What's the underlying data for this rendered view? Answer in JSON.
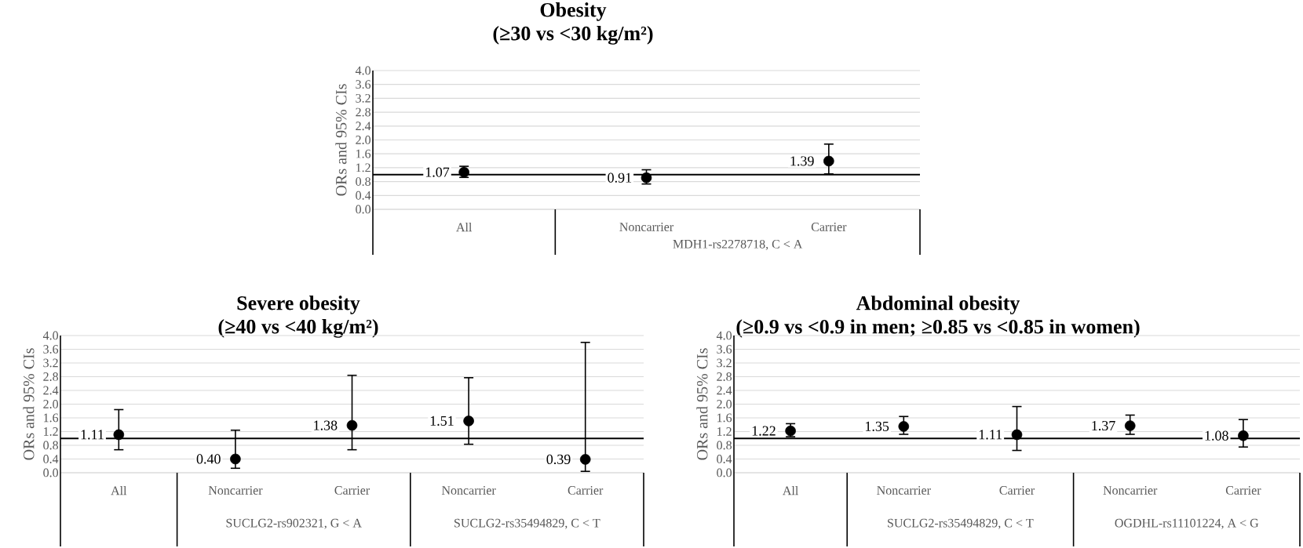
{
  "chart_data": [
    {
      "type": "scatter",
      "title": "Obesity",
      "subtitle": "(≥30 vs <30 kg/m²)",
      "ylabel": "ORs and 95% CIs",
      "categories": [
        "All",
        "Noncarrier",
        "Carrier"
      ],
      "values": [
        1.07,
        0.91,
        1.39
      ],
      "errors": [
        [
          0.92,
          1.24
        ],
        [
          0.73,
          1.14
        ],
        [
          1.02,
          1.88
        ]
      ],
      "value_labels": [
        "1.07",
        "0.91",
        "1.39"
      ],
      "color": "#000000",
      "marker": "circle",
      "grid": "y",
      "ylim": [
        0,
        4
      ],
      "yticks": [
        {
          "value": 0,
          "label": "0.0"
        },
        {
          "value": 0.4,
          "label": "0.4"
        },
        {
          "value": 0.8,
          "label": "0.8"
        },
        {
          "value": 1.2,
          "label": "1.2"
        },
        {
          "value": 1.6,
          "label": "1.6"
        },
        {
          "value": 2,
          "label": "2.0"
        },
        {
          "value": 2.4,
          "label": "2.4"
        },
        {
          "value": 2.8,
          "label": "2.8"
        },
        {
          "value": 3.2,
          "label": "3.2"
        },
        {
          "value": 3.6,
          "label": "3.6"
        },
        {
          "value": 4,
          "label": "4.0"
        }
      ],
      "ref_lines": [
        {
          "axis": "y",
          "value": 1,
          "color": "#000000"
        }
      ],
      "annotations": [
        "MDH1-rs2278718, C < A"
      ]
    },
    {
      "type": "scatter",
      "title": "Severe obesity",
      "subtitle": "(≥40 vs <40 kg/m²)",
      "ylabel": "ORs and 95% CIs",
      "categories": [
        "All",
        "Noncarrier",
        "Carrier",
        "Noncarrier",
        "Carrier"
      ],
      "values": [
        1.11,
        0.4,
        1.38,
        1.51,
        0.39
      ],
      "errors": [
        [
          0.67,
          1.84
        ],
        [
          0.13,
          1.24
        ],
        [
          0.67,
          2.84
        ],
        [
          0.83,
          2.77
        ],
        [
          0.04,
          3.8
        ]
      ],
      "value_labels": [
        "1.11",
        "0.40",
        "1.38",
        "1.51",
        "0.39"
      ],
      "color": "#000000",
      "marker": "circle",
      "grid": "y",
      "ylim": [
        0,
        4
      ],
      "yticks": [
        {
          "value": 0,
          "label": "0.0"
        },
        {
          "value": 0.4,
          "label": "0.4"
        },
        {
          "value": 0.8,
          "label": "0.8"
        },
        {
          "value": 1.2,
          "label": "1.2"
        },
        {
          "value": 1.6,
          "label": "1.6"
        },
        {
          "value": 2,
          "label": "2.0"
        },
        {
          "value": 2.4,
          "label": "2.4"
        },
        {
          "value": 2.8,
          "label": "2.8"
        },
        {
          "value": 3.2,
          "label": "3.2"
        },
        {
          "value": 3.6,
          "label": "3.6"
        },
        {
          "value": 4,
          "label": "4.0"
        }
      ],
      "ref_lines": [
        {
          "axis": "y",
          "value": 1,
          "color": "#000000"
        }
      ],
      "annotations": [
        "SUCLG2-rs902321, G < A",
        "SUCLG2-rs35494829, C < T"
      ]
    },
    {
      "type": "scatter",
      "title": "Abdominal obesity",
      "subtitle": "(≥0.9 vs <0.9 in men; ≥0.85 vs <0.85 in women)",
      "ylabel": "ORs and 95% CIs",
      "categories": [
        "All",
        "Noncarrier",
        "Carrier",
        "Noncarrier",
        "Carrier"
      ],
      "values": [
        1.22,
        1.35,
        1.11,
        1.37,
        1.08
      ],
      "errors": [
        [
          1.05,
          1.43
        ],
        [
          1.12,
          1.64
        ],
        [
          0.65,
          1.93
        ],
        [
          1.12,
          1.68
        ],
        [
          0.75,
          1.55
        ]
      ],
      "value_labels": [
        "1.22",
        "1.35",
        "1.11",
        "1.37",
        "1.08"
      ],
      "color": "#000000",
      "marker": "circle",
      "grid": "y",
      "ylim": [
        0,
        4
      ],
      "yticks": [
        {
          "value": 0,
          "label": "0.0"
        },
        {
          "value": 0.4,
          "label": "0.4"
        },
        {
          "value": 0.8,
          "label": "0.8"
        },
        {
          "value": 1.2,
          "label": "1.2"
        },
        {
          "value": 1.6,
          "label": "1.6"
        },
        {
          "value": 2,
          "label": "2.0"
        },
        {
          "value": 2.4,
          "label": "2.4"
        },
        {
          "value": 2.8,
          "label": "2.8"
        },
        {
          "value": 3.2,
          "label": "3.2"
        },
        {
          "value": 3.6,
          "label": "3.6"
        },
        {
          "value": 4,
          "label": "4.0"
        }
      ],
      "ref_lines": [
        {
          "axis": "y",
          "value": 1,
          "color": "#000000"
        }
      ],
      "annotations": [
        "SUCLG2-rs35494829, C < T",
        "OGDHL-rs11101224, A < G"
      ]
    }
  ]
}
